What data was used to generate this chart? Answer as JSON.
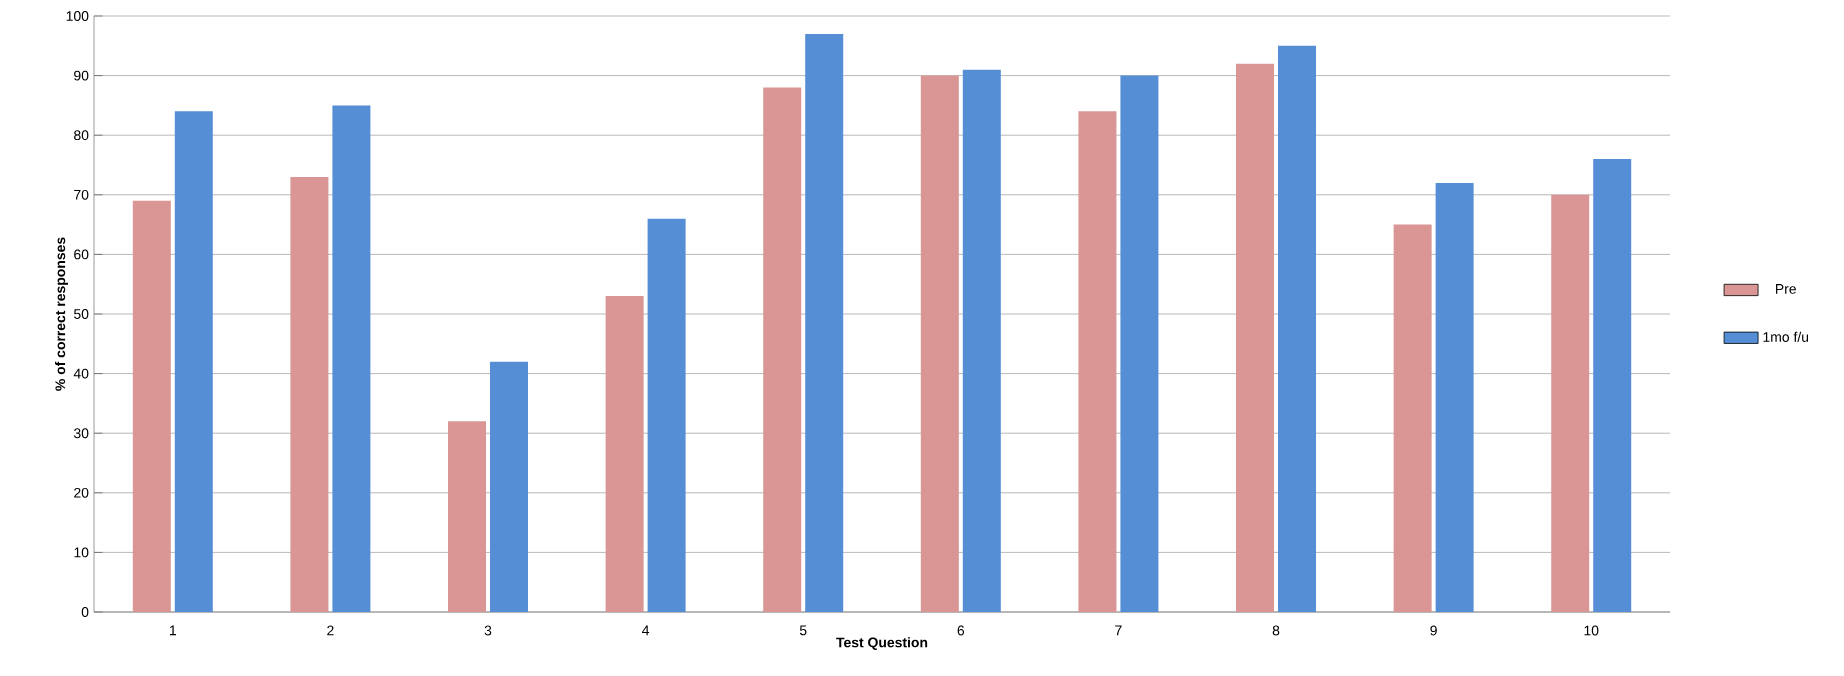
{
  "chart_data": {
    "type": "bar",
    "xlabel": "Test Question",
    "ylabel": "% of correct responses",
    "categories": [
      "1",
      "2",
      "3",
      "4",
      "5",
      "6",
      "7",
      "8",
      "9",
      "10"
    ],
    "series": [
      {
        "name": "Pre",
        "color": "#d99694",
        "values": [
          69,
          73,
          32,
          53,
          88,
          90,
          84,
          92,
          65,
          70
        ]
      },
      {
        "name": "1mo f/u",
        "color": "#558ed5",
        "values": [
          84,
          85,
          42,
          66,
          97,
          91,
          90,
          95,
          72,
          76
        ]
      }
    ],
    "ylim": [
      0,
      100
    ],
    "yticks": [
      0,
      10,
      20,
      30,
      40,
      50,
      60,
      70,
      80,
      90,
      100
    ],
    "grid": "y",
    "legend": "right"
  }
}
